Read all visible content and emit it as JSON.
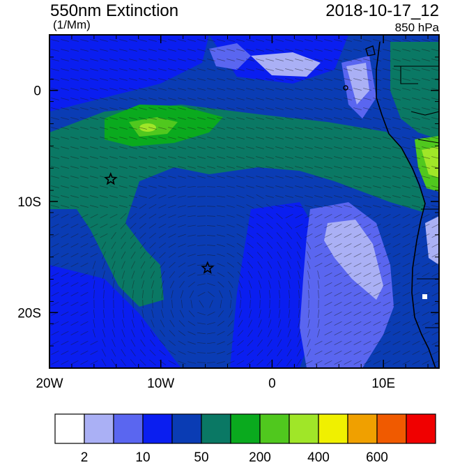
{
  "header": {
    "title": "550nm Extinction",
    "units": "(1/Mm)",
    "datetime": "2018-10-17_12",
    "level": "850 hPa"
  },
  "axes": {
    "x_ticks": [
      {
        "value": -20,
        "label": "20W"
      },
      {
        "value": -10,
        "label": "10W"
      },
      {
        "value": 0,
        "label": "0"
      },
      {
        "value": 10,
        "label": "10E"
      }
    ],
    "y_ticks": [
      {
        "value": 0,
        "label": "0"
      },
      {
        "value": -10,
        "label": "10S"
      },
      {
        "value": -20,
        "label": "20S"
      }
    ],
    "lon_range": [
      -20,
      15
    ],
    "lat_range": [
      -25,
      5
    ]
  },
  "markers": [
    {
      "name": "star-marker-1",
      "lon": -14.5,
      "lat": -8
    },
    {
      "name": "star-marker-2",
      "lon": -5.8,
      "lat": -16
    }
  ],
  "colorbar": {
    "colors": [
      "#ffffff",
      "#aab0f5",
      "#5a66f0",
      "#0a1ef0",
      "#0a3cb4",
      "#0a7864",
      "#0aaa1e",
      "#50c81e",
      "#a0e628",
      "#f0f000",
      "#f0a000",
      "#f05a00",
      "#f00000"
    ],
    "labels": [
      {
        "text": "2",
        "after_box": 1
      },
      {
        "text": "10",
        "after_box": 3
      },
      {
        "text": "50",
        "after_box": 5
      },
      {
        "text": "200",
        "after_box": 7
      },
      {
        "text": "400",
        "after_box": 9
      },
      {
        "text": "600",
        "after_box": 11
      }
    ]
  }
}
